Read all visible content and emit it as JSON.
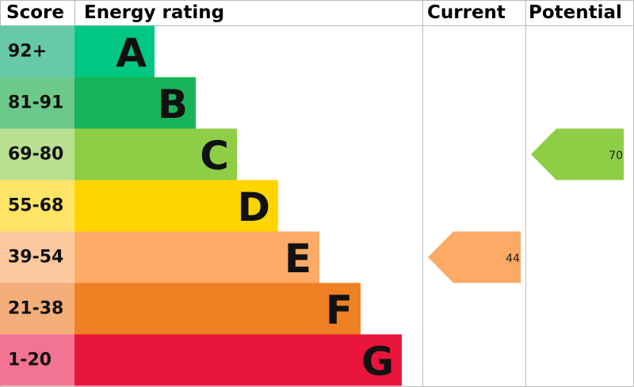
{
  "chart_data": {
    "type": "epc",
    "headers": [
      "Score",
      "Energy rating",
      "Current",
      "Potential"
    ],
    "bands": [
      {
        "score": "92+",
        "rating": "A",
        "color": "#00c781",
        "score_color": "#66c9a8"
      },
      {
        "score": "81-91",
        "rating": "B",
        "color": "#19b459",
        "score_color": "#6dc98a"
      },
      {
        "score": "69-80",
        "rating": "C",
        "color": "#8dce46",
        "score_color": "#b9e08f"
      },
      {
        "score": "55-68",
        "rating": "D",
        "color": "#ffd500",
        "score_color": "#ffe566"
      },
      {
        "score": "39-54",
        "rating": "E",
        "color": "#fcaa65",
        "score_color": "#fdc89e"
      },
      {
        "score": "21-38",
        "rating": "F",
        "color": "#ef8023",
        "score_color": "#f4ae7a"
      },
      {
        "score": "1-20",
        "rating": "G",
        "color": "#e9153b",
        "score_color": "#f27492"
      }
    ],
    "current": {
      "value": 44,
      "color": "#fcaa65"
    },
    "potential": {
      "value": 70,
      "color": "#8dce46"
    }
  }
}
